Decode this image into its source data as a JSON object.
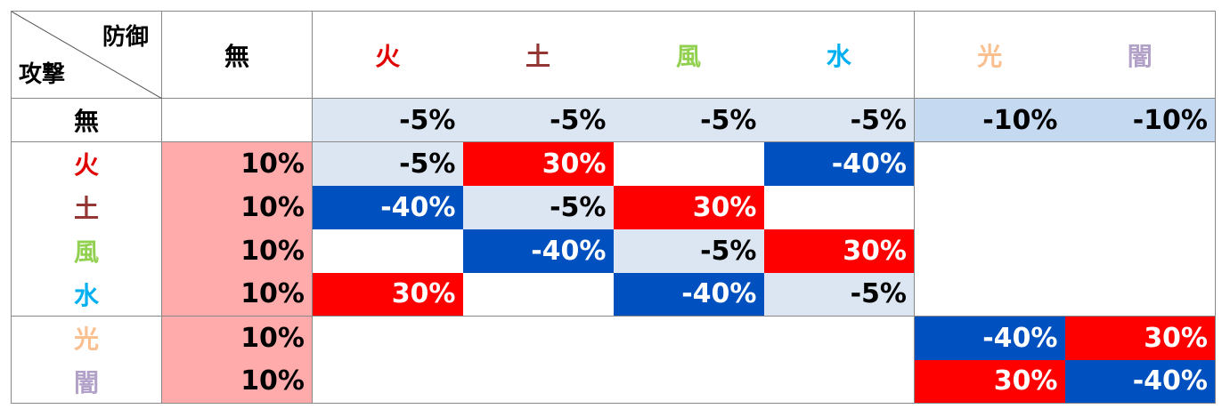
{
  "table": {
    "corner": {
      "defense": "防御",
      "attack": "攻撃"
    },
    "columns": [
      "無",
      "火",
      "土",
      "風",
      "水",
      "光",
      "闇"
    ],
    "rows": [
      {
        "label": "無",
        "cells": [
          null,
          "-5%",
          "-5%",
          "-5%",
          "-5%",
          "-10%",
          "-10%"
        ]
      },
      {
        "label": "火",
        "cells": [
          "10%",
          "-5%",
          "30%",
          null,
          "-40%",
          null,
          null
        ]
      },
      {
        "label": "土",
        "cells": [
          "10%",
          "-40%",
          "-5%",
          "30%",
          null,
          null,
          null
        ]
      },
      {
        "label": "風",
        "cells": [
          "10%",
          null,
          "-40%",
          "-5%",
          "30%",
          null,
          null
        ]
      },
      {
        "label": "水",
        "cells": [
          "10%",
          "30%",
          null,
          "-40%",
          "-5%",
          null,
          null
        ]
      },
      {
        "label": "光",
        "cells": [
          "10%",
          null,
          null,
          null,
          null,
          "-40%",
          "30%"
        ]
      },
      {
        "label": "闇",
        "cells": [
          "10%",
          null,
          null,
          null,
          null,
          "30%",
          "-40%"
        ]
      }
    ]
  }
}
